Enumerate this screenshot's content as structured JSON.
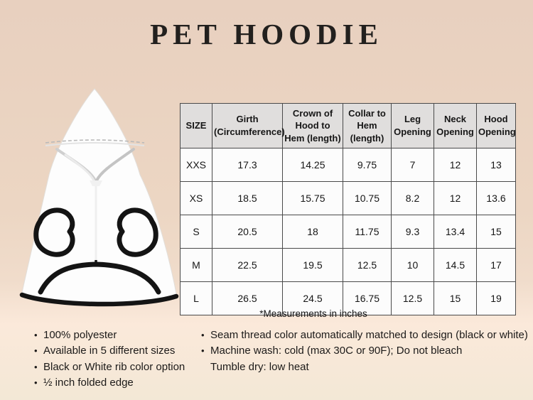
{
  "title": "PET HOODIE",
  "illustration": {
    "alt": "white pet hoodie with black rib trim, front view"
  },
  "size_table": {
    "columns": [
      "SIZE",
      "Girth (Circumference)",
      "Crown of Hood to Hem (length)",
      "Collar to Hem (length)",
      "Leg Opening",
      "Neck Opening",
      "Hood Opening"
    ],
    "rows": [
      [
        "XXS",
        "17.3",
        "14.25",
        "9.75",
        "7",
        "12",
        "13"
      ],
      [
        "XS",
        "18.5",
        "15.75",
        "10.75",
        "8.2",
        "12",
        "13.6"
      ],
      [
        "S",
        "20.5",
        "18",
        "11.75",
        "9.3",
        "13.4",
        "15"
      ],
      [
        "M",
        "22.5",
        "19.5",
        "12.5",
        "10",
        "14.5",
        "17"
      ],
      [
        "L",
        "26.5",
        "24.5",
        "16.75",
        "12.5",
        "15",
        "19"
      ]
    ],
    "footnote": "*Measurements in inches"
  },
  "features": {
    "left": [
      {
        "bullet": true,
        "text": "100% polyester"
      },
      {
        "bullet": true,
        "text": "Available in 5 different sizes"
      },
      {
        "bullet": true,
        "text": "Black or White rib color option"
      },
      {
        "bullet": true,
        "text": "½ inch folded edge"
      }
    ],
    "right": [
      {
        "bullet": true,
        "text": "Seam thread color automatically matched to design (black or white)"
      },
      {
        "bullet": true,
        "text": "Machine wash: cold (max 30C or 90F); Do not bleach"
      },
      {
        "bullet": false,
        "text": "Tumble dry: low heat"
      }
    ]
  },
  "colors": {
    "background_top": "#e8d0bf",
    "background_bottom": "#f3e8d6",
    "table_header_bg": "#e0dedd",
    "table_cell_bg": "#fcfcfc",
    "table_border": "#4a4a4a",
    "garment_white": "#fdfdfd",
    "trim_black": "#141414",
    "text": "#1d1b1a"
  }
}
